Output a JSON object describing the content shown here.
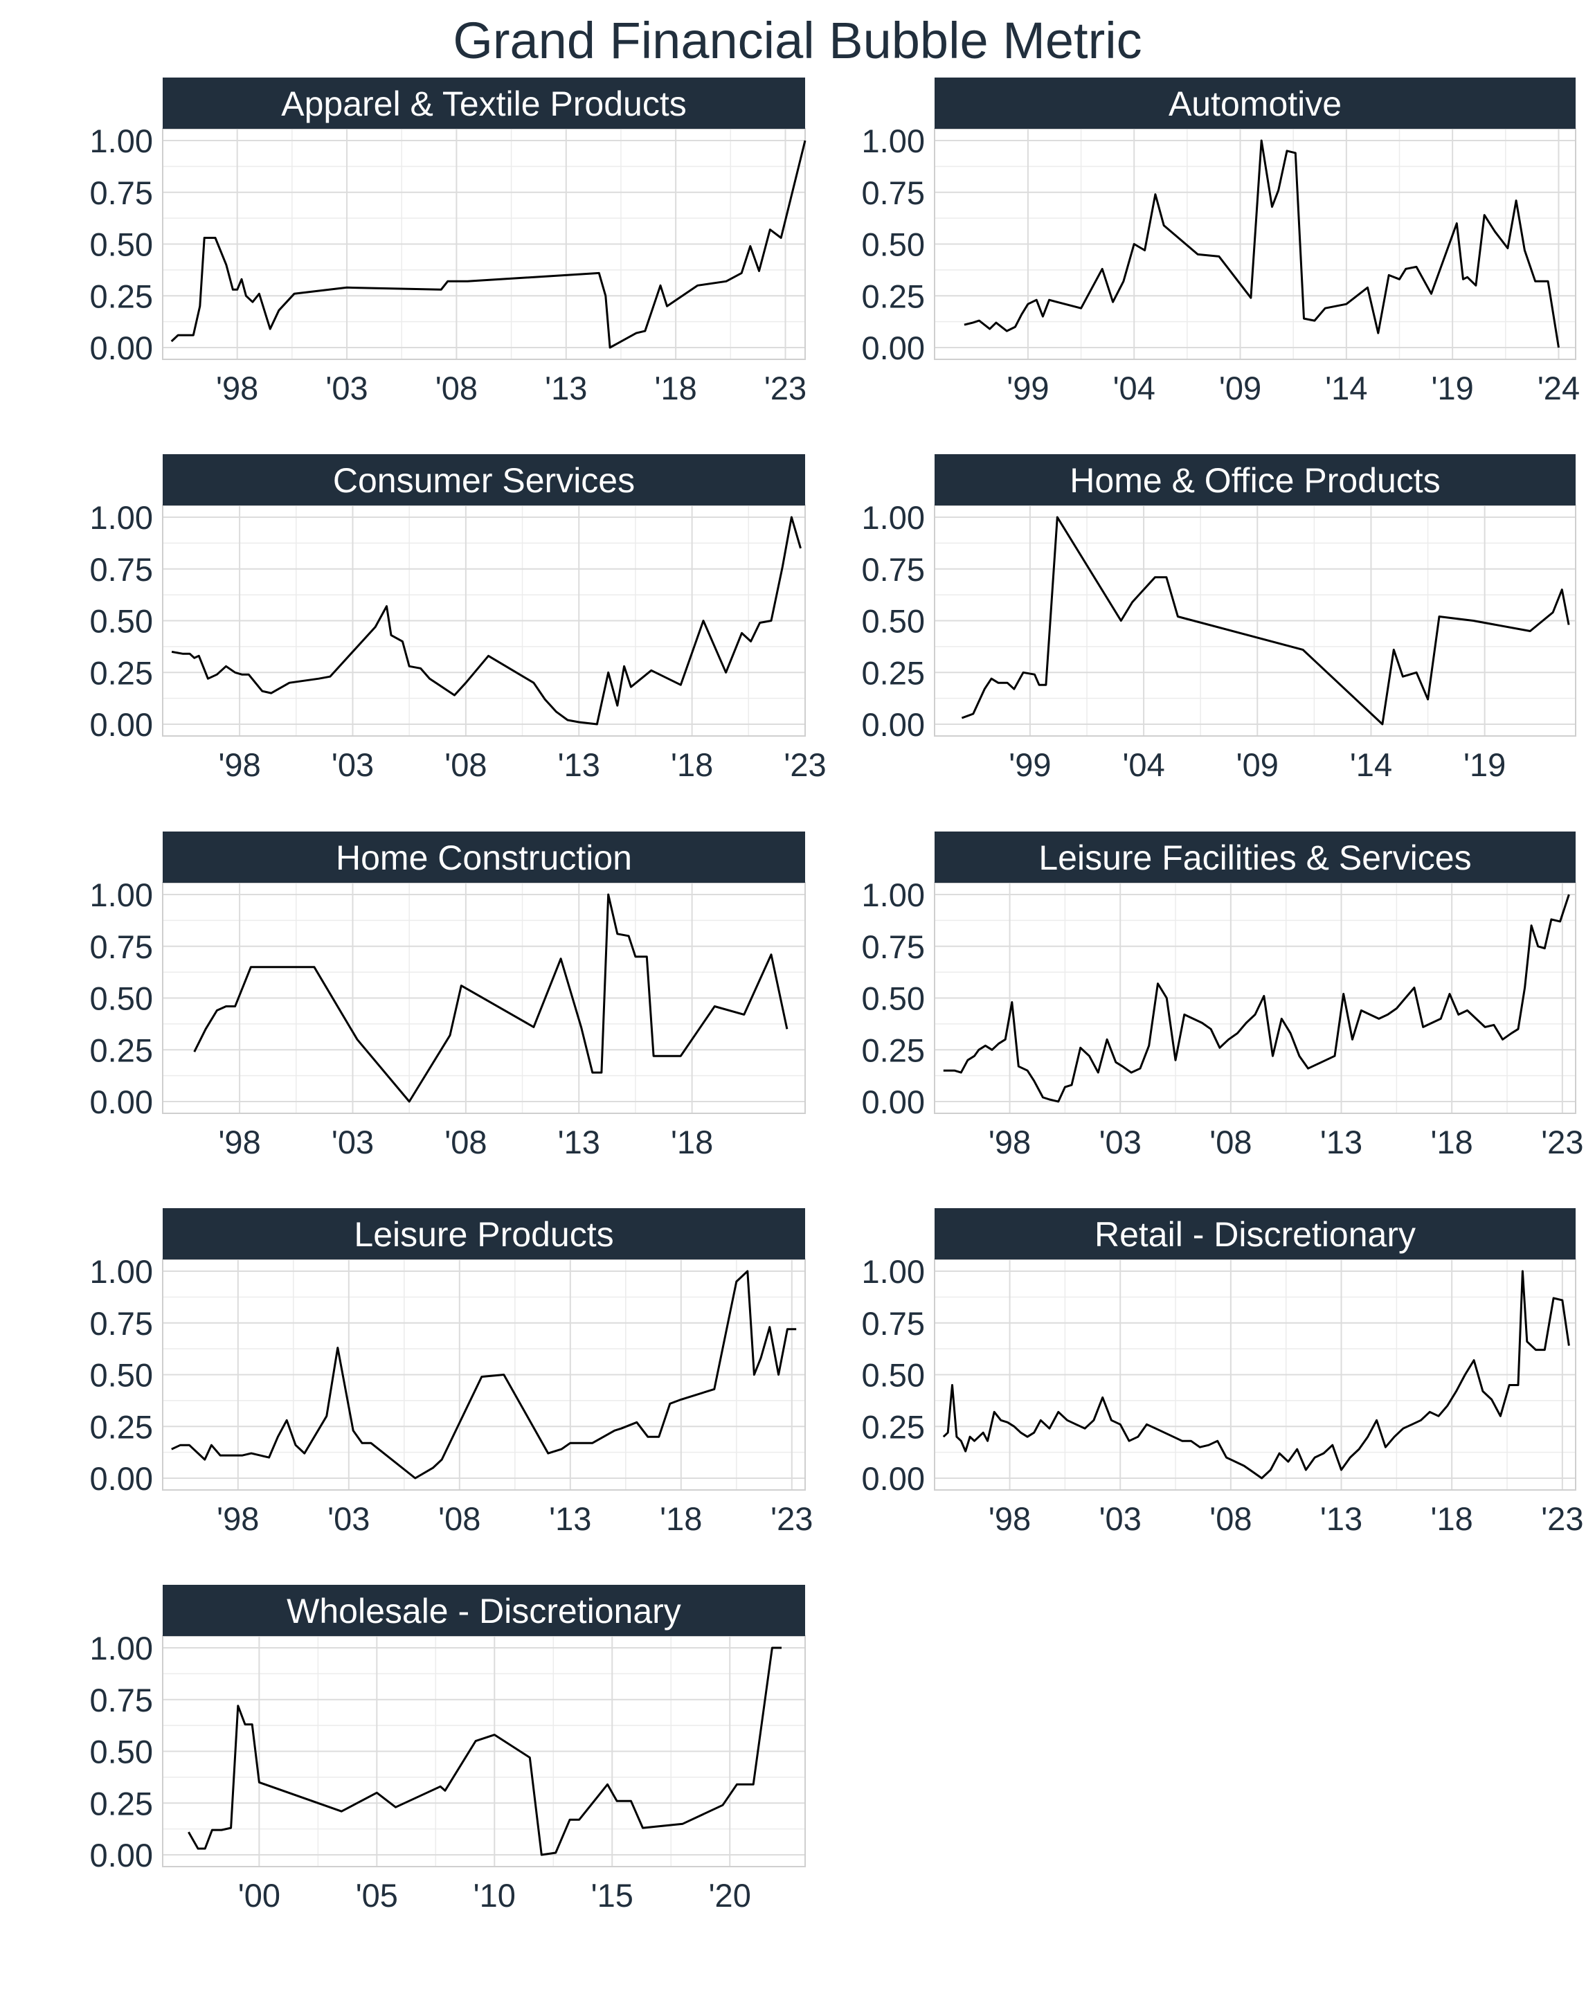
{
  "title": "Grand Financial Bubble Metric",
  "colors": {
    "strip": "#212f3d",
    "text": "#212f3d",
    "grid": "#dcdcdc",
    "line": "#000000",
    "background": "#ffffff"
  },
  "chart_data": [
    {
      "type": "line",
      "title": "Apparel & Textile Products",
      "ylim": [
        0,
        1
      ],
      "yticks": [
        "0.00",
        "0.25",
        "0.50",
        "0.75",
        "1.00"
      ],
      "xlim": [
        1994.6,
        2023.9
      ],
      "xticks": [
        1998,
        2003,
        2008,
        2013,
        2018,
        2023
      ],
      "xtick_labels": [
        "'98",
        "'03",
        "'08",
        "'13",
        "'18",
        "'23"
      ],
      "x": [
        1995.0,
        1995.3,
        1996.0,
        1996.3,
        1996.5,
        1997.0,
        1997.5,
        1997.8,
        1998.0,
        1998.2,
        1998.4,
        1998.7,
        1999.0,
        1999.5,
        1999.9,
        2000.6,
        2003.0,
        2007.3,
        2007.6,
        2008.5,
        2014.5,
        2014.8,
        2015.0,
        2016.2,
        2016.6,
        2017.3,
        2017.6,
        2019.0,
        2020.3,
        2021.0,
        2021.4,
        2021.8,
        2022.3,
        2022.8,
        2023.9
      ],
      "y": [
        0.03,
        0.06,
        0.06,
        0.2,
        0.53,
        0.53,
        0.4,
        0.28,
        0.28,
        0.33,
        0.25,
        0.22,
        0.26,
        0.09,
        0.18,
        0.26,
        0.29,
        0.28,
        0.32,
        0.32,
        0.36,
        0.25,
        0.0,
        0.07,
        0.08,
        0.3,
        0.2,
        0.3,
        0.32,
        0.36,
        0.49,
        0.37,
        0.57,
        0.53,
        1.0
      ]
    },
    {
      "type": "line",
      "title": "Automotive",
      "ylim": [
        0,
        1
      ],
      "yticks": [
        "0.00",
        "0.25",
        "0.50",
        "0.75",
        "1.00"
      ],
      "xlim": [
        1994.6,
        2024.8
      ],
      "xticks": [
        1999,
        2004,
        2009,
        2014,
        2019,
        2024
      ],
      "xtick_labels": [
        "'99",
        "'04",
        "'09",
        "'14",
        "'19",
        "'24"
      ],
      "x": [
        1996.0,
        1996.4,
        1996.7,
        1997.2,
        1997.5,
        1998.0,
        1998.4,
        1998.7,
        1999.0,
        1999.4,
        1999.7,
        2000.0,
        2001.5,
        2002.5,
        2003.0,
        2003.5,
        2004.0,
        2004.5,
        2005.0,
        2005.4,
        2007.0,
        2008.0,
        2009.5,
        2010.0,
        2010.5,
        2010.8,
        2011.2,
        2011.6,
        2012.0,
        2012.5,
        2013.0,
        2014.0,
        2015.0,
        2015.5,
        2016.0,
        2016.5,
        2016.8,
        2017.3,
        2018.0,
        2019.2,
        2019.5,
        2019.7,
        2020.1,
        2020.5,
        2021.0,
        2021.6,
        2022.0,
        2022.4,
        2022.9,
        2023.5,
        2024.0
      ],
      "y": [
        0.11,
        0.12,
        0.13,
        0.09,
        0.12,
        0.08,
        0.1,
        0.16,
        0.21,
        0.23,
        0.15,
        0.23,
        0.19,
        0.38,
        0.22,
        0.32,
        0.5,
        0.47,
        0.74,
        0.59,
        0.45,
        0.44,
        0.24,
        1.0,
        0.68,
        0.76,
        0.95,
        0.94,
        0.14,
        0.13,
        0.19,
        0.21,
        0.29,
        0.07,
        0.35,
        0.33,
        0.38,
        0.39,
        0.26,
        0.6,
        0.33,
        0.34,
        0.3,
        0.64,
        0.56,
        0.48,
        0.71,
        0.47,
        0.32,
        0.32,
        0.0
      ]
    },
    {
      "type": "line",
      "title": "Consumer Services",
      "ylim": [
        0,
        1
      ],
      "yticks": [
        "0.00",
        "0.25",
        "0.50",
        "0.75",
        "1.00"
      ],
      "xlim": [
        1994.6,
        2023.0
      ],
      "xticks": [
        1998,
        2003,
        2008,
        2013,
        2018,
        2023
      ],
      "xtick_labels": [
        "'98",
        "'03",
        "'08",
        "'13",
        "'18",
        "'23"
      ],
      "x": [
        1995.0,
        1995.5,
        1995.8,
        1996.0,
        1996.2,
        1996.6,
        1997.0,
        1997.4,
        1997.8,
        1998.1,
        1998.4,
        1998.7,
        1999.0,
        1999.4,
        2000.2,
        2001.5,
        2002.0,
        2004.0,
        2004.5,
        2004.7,
        2005.2,
        2005.5,
        2006.0,
        2006.4,
        2007.5,
        2008.0,
        2009.0,
        2011.0,
        2011.5,
        2012.0,
        2012.5,
        2013.0,
        2013.8,
        2014.3,
        2014.7,
        2015.0,
        2015.3,
        2016.2,
        2017.5,
        2018.5,
        2019.5,
        2020.2,
        2020.6,
        2021.0,
        2021.5,
        2022.0,
        2022.4,
        2022.8
      ],
      "y": [
        0.35,
        0.34,
        0.34,
        0.32,
        0.33,
        0.22,
        0.24,
        0.28,
        0.25,
        0.24,
        0.24,
        0.2,
        0.16,
        0.15,
        0.2,
        0.22,
        0.23,
        0.47,
        0.57,
        0.43,
        0.4,
        0.28,
        0.27,
        0.22,
        0.14,
        0.2,
        0.33,
        0.2,
        0.12,
        0.06,
        0.02,
        0.01,
        0.0,
        0.25,
        0.09,
        0.28,
        0.18,
        0.26,
        0.19,
        0.5,
        0.25,
        0.44,
        0.4,
        0.49,
        0.5,
        0.76,
        1.0,
        0.85
      ]
    },
    {
      "type": "line",
      "title": "Home & Office Products",
      "ylim": [
        0,
        1
      ],
      "yticks": [
        "0.00",
        "0.25",
        "0.50",
        "0.75",
        "1.00"
      ],
      "xlim": [
        1994.8,
        2023.0
      ],
      "xticks": [
        1999,
        2004,
        2009,
        2014,
        2019
      ],
      "xtick_labels": [
        "'99",
        "'04",
        "'09",
        "'14",
        "'19"
      ],
      "x": [
        1996.0,
        1996.5,
        1997.0,
        1997.3,
        1997.6,
        1998.0,
        1998.3,
        1998.7,
        1999.2,
        1999.4,
        1999.7,
        2000.2,
        2003.0,
        2003.5,
        2004.0,
        2004.5,
        2005.0,
        2005.5,
        2011.0,
        2014.5,
        2015.0,
        2015.4,
        2016.0,
        2016.5,
        2017.0,
        2018.5,
        2021.0,
        2022.0,
        2022.4,
        2022.7
      ],
      "y": [
        0.03,
        0.05,
        0.17,
        0.22,
        0.2,
        0.2,
        0.17,
        0.25,
        0.24,
        0.19,
        0.19,
        1.0,
        0.5,
        0.59,
        0.65,
        0.71,
        0.71,
        0.52,
        0.36,
        0.0,
        0.36,
        0.23,
        0.25,
        0.12,
        0.52,
        0.5,
        0.45,
        0.54,
        0.65,
        0.48
      ]
    },
    {
      "type": "line",
      "title": "Home Construction",
      "ylim": [
        0,
        1
      ],
      "yticks": [
        "0.00",
        "0.25",
        "0.50",
        "0.75",
        "1.00"
      ],
      "xlim": [
        1994.6,
        2023.0
      ],
      "xticks": [
        1998,
        2003,
        2008,
        2013,
        2018
      ],
      "xtick_labels": [
        "'98",
        "'03",
        "'08",
        "'13",
        "'18"
      ],
      "x": [
        1996.0,
        1996.5,
        1997.0,
        1997.4,
        1997.8,
        1998.5,
        2001.3,
        2003.2,
        2005.5,
        2007.3,
        2007.8,
        2011.0,
        2012.2,
        2013.1,
        2013.6,
        2014.0,
        2014.3,
        2014.7,
        2015.2,
        2015.5,
        2016.0,
        2016.3,
        2017.5,
        2019.0,
        2020.3,
        2021.5,
        2022.2
      ],
      "y": [
        0.24,
        0.35,
        0.44,
        0.46,
        0.46,
        0.65,
        0.65,
        0.3,
        0.0,
        0.32,
        0.56,
        0.36,
        0.69,
        0.36,
        0.14,
        0.14,
        1.0,
        0.81,
        0.8,
        0.7,
        0.7,
        0.22,
        0.22,
        0.46,
        0.42,
        0.71,
        0.35
      ]
    },
    {
      "type": "line",
      "title": "Leisure Facilities & Services",
      "ylim": [
        0,
        1
      ],
      "yticks": [
        "0.00",
        "0.25",
        "0.50",
        "0.75",
        "1.00"
      ],
      "xlim": [
        1994.6,
        2023.6
      ],
      "xticks": [
        1998,
        2003,
        2008,
        2013,
        2018,
        2023
      ],
      "xtick_labels": [
        "'98",
        "'03",
        "'08",
        "'13",
        "'18",
        "'23"
      ],
      "x": [
        1995.0,
        1995.5,
        1995.8,
        1996.1,
        1996.4,
        1996.6,
        1996.9,
        1997.2,
        1997.5,
        1997.8,
        1998.1,
        1998.4,
        1998.8,
        1999.1,
        1999.5,
        1999.8,
        2000.2,
        2000.5,
        2000.8,
        2001.2,
        2001.6,
        2002.0,
        2002.4,
        2002.8,
        2003.1,
        2003.5,
        2003.9,
        2004.3,
        2004.7,
        2005.1,
        2005.5,
        2005.9,
        2006.3,
        2006.7,
        2007.1,
        2007.5,
        2007.9,
        2008.3,
        2008.7,
        2009.1,
        2009.5,
        2009.9,
        2010.3,
        2010.7,
        2011.1,
        2011.5,
        2011.9,
        2012.3,
        2012.7,
        2013.1,
        2013.5,
        2013.9,
        2014.3,
        2014.7,
        2015.1,
        2015.5,
        2015.9,
        2016.3,
        2016.7,
        2017.1,
        2017.5,
        2017.9,
        2018.3,
        2018.7,
        2019.1,
        2019.5,
        2019.9,
        2020.3,
        2020.7,
        2021.0,
        2021.3,
        2021.6,
        2021.9,
        2022.2,
        2022.5,
        2022.9,
        2023.3
      ],
      "y": [
        0.15,
        0.15,
        0.14,
        0.2,
        0.22,
        0.25,
        0.27,
        0.25,
        0.28,
        0.3,
        0.48,
        0.17,
        0.15,
        0.1,
        0.02,
        0.01,
        0.0,
        0.07,
        0.08,
        0.26,
        0.22,
        0.14,
        0.3,
        0.19,
        0.17,
        0.14,
        0.16,
        0.27,
        0.57,
        0.5,
        0.2,
        0.42,
        0.4,
        0.38,
        0.35,
        0.26,
        0.3,
        0.33,
        0.38,
        0.42,
        0.51,
        0.22,
        0.4,
        0.33,
        0.22,
        0.16,
        0.18,
        0.2,
        0.22,
        0.52,
        0.3,
        0.44,
        0.42,
        0.4,
        0.42,
        0.45,
        0.5,
        0.55,
        0.36,
        0.38,
        0.4,
        0.52,
        0.42,
        0.44,
        0.4,
        0.36,
        0.37,
        0.3,
        0.33,
        0.35,
        0.55,
        0.85,
        0.75,
        0.74,
        0.88,
        0.87,
        1.0
      ]
    },
    {
      "type": "line",
      "title": "Leisure Products",
      "ylim": [
        0,
        1
      ],
      "yticks": [
        "0.00",
        "0.25",
        "0.50",
        "0.75",
        "1.00"
      ],
      "xlim": [
        1994.6,
        2023.6
      ],
      "xticks": [
        1998,
        2003,
        2008,
        2013,
        2018,
        2023
      ],
      "xtick_labels": [
        "'98",
        "'03",
        "'08",
        "'13",
        "'18",
        "'23"
      ],
      "x": [
        1995.0,
        1995.4,
        1995.8,
        1996.2,
        1996.5,
        1996.8,
        1997.2,
        1997.5,
        1997.9,
        1998.2,
        1998.6,
        1999.0,
        1999.4,
        1999.8,
        2000.2,
        2000.6,
        2001.0,
        2002.0,
        2002.5,
        2003.2,
        2003.6,
        2004.0,
        2006.0,
        2006.8,
        2007.2,
        2009.0,
        2010.0,
        2012.0,
        2012.6,
        2013.0,
        2014.0,
        2015.0,
        2015.3,
        2016.0,
        2016.5,
        2017.0,
        2017.5,
        2018.0,
        2019.5,
        2020.5,
        2021.0,
        2021.3,
        2021.6,
        2022.0,
        2022.4,
        2022.8,
        2023.2
      ],
      "y": [
        0.14,
        0.16,
        0.16,
        0.12,
        0.09,
        0.16,
        0.11,
        0.11,
        0.11,
        0.11,
        0.12,
        0.11,
        0.1,
        0.2,
        0.28,
        0.16,
        0.12,
        0.3,
        0.63,
        0.23,
        0.17,
        0.17,
        0.0,
        0.05,
        0.09,
        0.49,
        0.5,
        0.12,
        0.14,
        0.17,
        0.17,
        0.23,
        0.24,
        0.27,
        0.2,
        0.2,
        0.36,
        0.38,
        0.43,
        0.95,
        1.0,
        0.5,
        0.58,
        0.73,
        0.5,
        0.72,
        0.72
      ]
    },
    {
      "type": "line",
      "title": "Retail - Discretionary",
      "ylim": [
        0,
        1
      ],
      "yticks": [
        "0.00",
        "0.25",
        "0.50",
        "0.75",
        "1.00"
      ],
      "xlim": [
        1994.6,
        2023.6
      ],
      "xticks": [
        1998,
        2003,
        2008,
        2013,
        2018,
        2023
      ],
      "xtick_labels": [
        "'98",
        "'03",
        "'08",
        "'13",
        "'18",
        "'23"
      ],
      "x": [
        1995.0,
        1995.2,
        1995.4,
        1995.6,
        1995.8,
        1996.0,
        1996.2,
        1996.4,
        1996.6,
        1996.8,
        1997.0,
        1997.3,
        1997.6,
        1997.9,
        1998.2,
        1998.5,
        1998.8,
        1999.1,
        1999.4,
        1999.8,
        2000.2,
        2000.6,
        2001.0,
        2001.4,
        2001.8,
        2002.2,
        2002.6,
        2003.0,
        2003.4,
        2003.8,
        2004.2,
        2004.6,
        2005.0,
        2005.4,
        2005.8,
        2006.2,
        2006.6,
        2007.0,
        2007.4,
        2007.8,
        2008.2,
        2008.6,
        2009.0,
        2009.4,
        2009.8,
        2010.2,
        2010.6,
        2011.0,
        2011.4,
        2011.8,
        2012.2,
        2012.6,
        2013.0,
        2013.4,
        2013.8,
        2014.2,
        2014.6,
        2015.0,
        2015.4,
        2015.8,
        2016.2,
        2016.6,
        2017.0,
        2017.4,
        2017.8,
        2018.2,
        2018.6,
        2019.0,
        2019.4,
        2019.8,
        2020.2,
        2020.6,
        2021.0,
        2021.2,
        2021.4,
        2021.8,
        2022.2,
        2022.6,
        2023.0,
        2023.3
      ],
      "y": [
        0.2,
        0.22,
        0.45,
        0.2,
        0.18,
        0.13,
        0.2,
        0.18,
        0.2,
        0.22,
        0.18,
        0.32,
        0.28,
        0.27,
        0.25,
        0.22,
        0.2,
        0.22,
        0.28,
        0.24,
        0.32,
        0.28,
        0.26,
        0.24,
        0.28,
        0.39,
        0.28,
        0.26,
        0.18,
        0.2,
        0.26,
        0.24,
        0.22,
        0.2,
        0.18,
        0.18,
        0.15,
        0.16,
        0.18,
        0.1,
        0.08,
        0.06,
        0.03,
        0.0,
        0.04,
        0.12,
        0.08,
        0.14,
        0.04,
        0.1,
        0.12,
        0.16,
        0.04,
        0.1,
        0.14,
        0.2,
        0.28,
        0.15,
        0.2,
        0.24,
        0.26,
        0.28,
        0.32,
        0.3,
        0.35,
        0.42,
        0.5,
        0.57,
        0.42,
        0.38,
        0.3,
        0.45,
        0.45,
        1.0,
        0.66,
        0.62,
        0.62,
        0.87,
        0.86,
        0.64
      ]
    },
    {
      "type": "line",
      "title": "Wholesale - Discretionary",
      "ylim": [
        0,
        1
      ],
      "yticks": [
        "0.00",
        "0.25",
        "0.50",
        "0.75",
        "1.00"
      ],
      "xlim": [
        1995.9,
        2023.2
      ],
      "xticks": [
        2000,
        2005,
        2010,
        2015,
        2020
      ],
      "xtick_labels": [
        "'00",
        "'05",
        "'10",
        "'15",
        "'20"
      ],
      "x": [
        1997.0,
        1997.4,
        1997.7,
        1998.0,
        1998.4,
        1998.8,
        1999.1,
        1999.4,
        1999.7,
        2000.0,
        2003.5,
        2005.0,
        2005.8,
        2007.7,
        2007.9,
        2009.2,
        2010.0,
        2011.5,
        2012.0,
        2012.6,
        2013.2,
        2013.6,
        2014.8,
        2015.2,
        2015.8,
        2016.3,
        2018.0,
        2019.7,
        2020.3,
        2021.0,
        2021.8,
        2022.2
      ],
      "y": [
        0.11,
        0.03,
        0.03,
        0.12,
        0.12,
        0.13,
        0.72,
        0.63,
        0.63,
        0.35,
        0.21,
        0.3,
        0.23,
        0.33,
        0.31,
        0.55,
        0.58,
        0.47,
        0.0,
        0.01,
        0.17,
        0.17,
        0.34,
        0.26,
        0.26,
        0.13,
        0.15,
        0.24,
        0.34,
        0.34,
        1.0,
        1.0
      ]
    }
  ]
}
